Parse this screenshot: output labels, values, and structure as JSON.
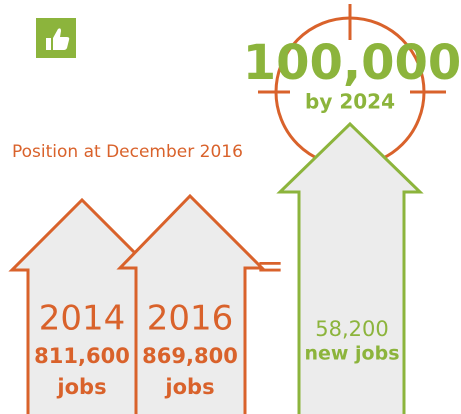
{
  "target": {
    "value": "100,000",
    "subtitle": "by 2024"
  },
  "caption": "Position at December 2016",
  "arrows": [
    {
      "year": "2014",
      "jobs": "811,600",
      "unit": "jobs"
    },
    {
      "year": "2016",
      "jobs": "869,800",
      "unit": "jobs"
    }
  ],
  "equals": "=",
  "result": {
    "value": "58,200",
    "unit": "new jobs"
  }
}
